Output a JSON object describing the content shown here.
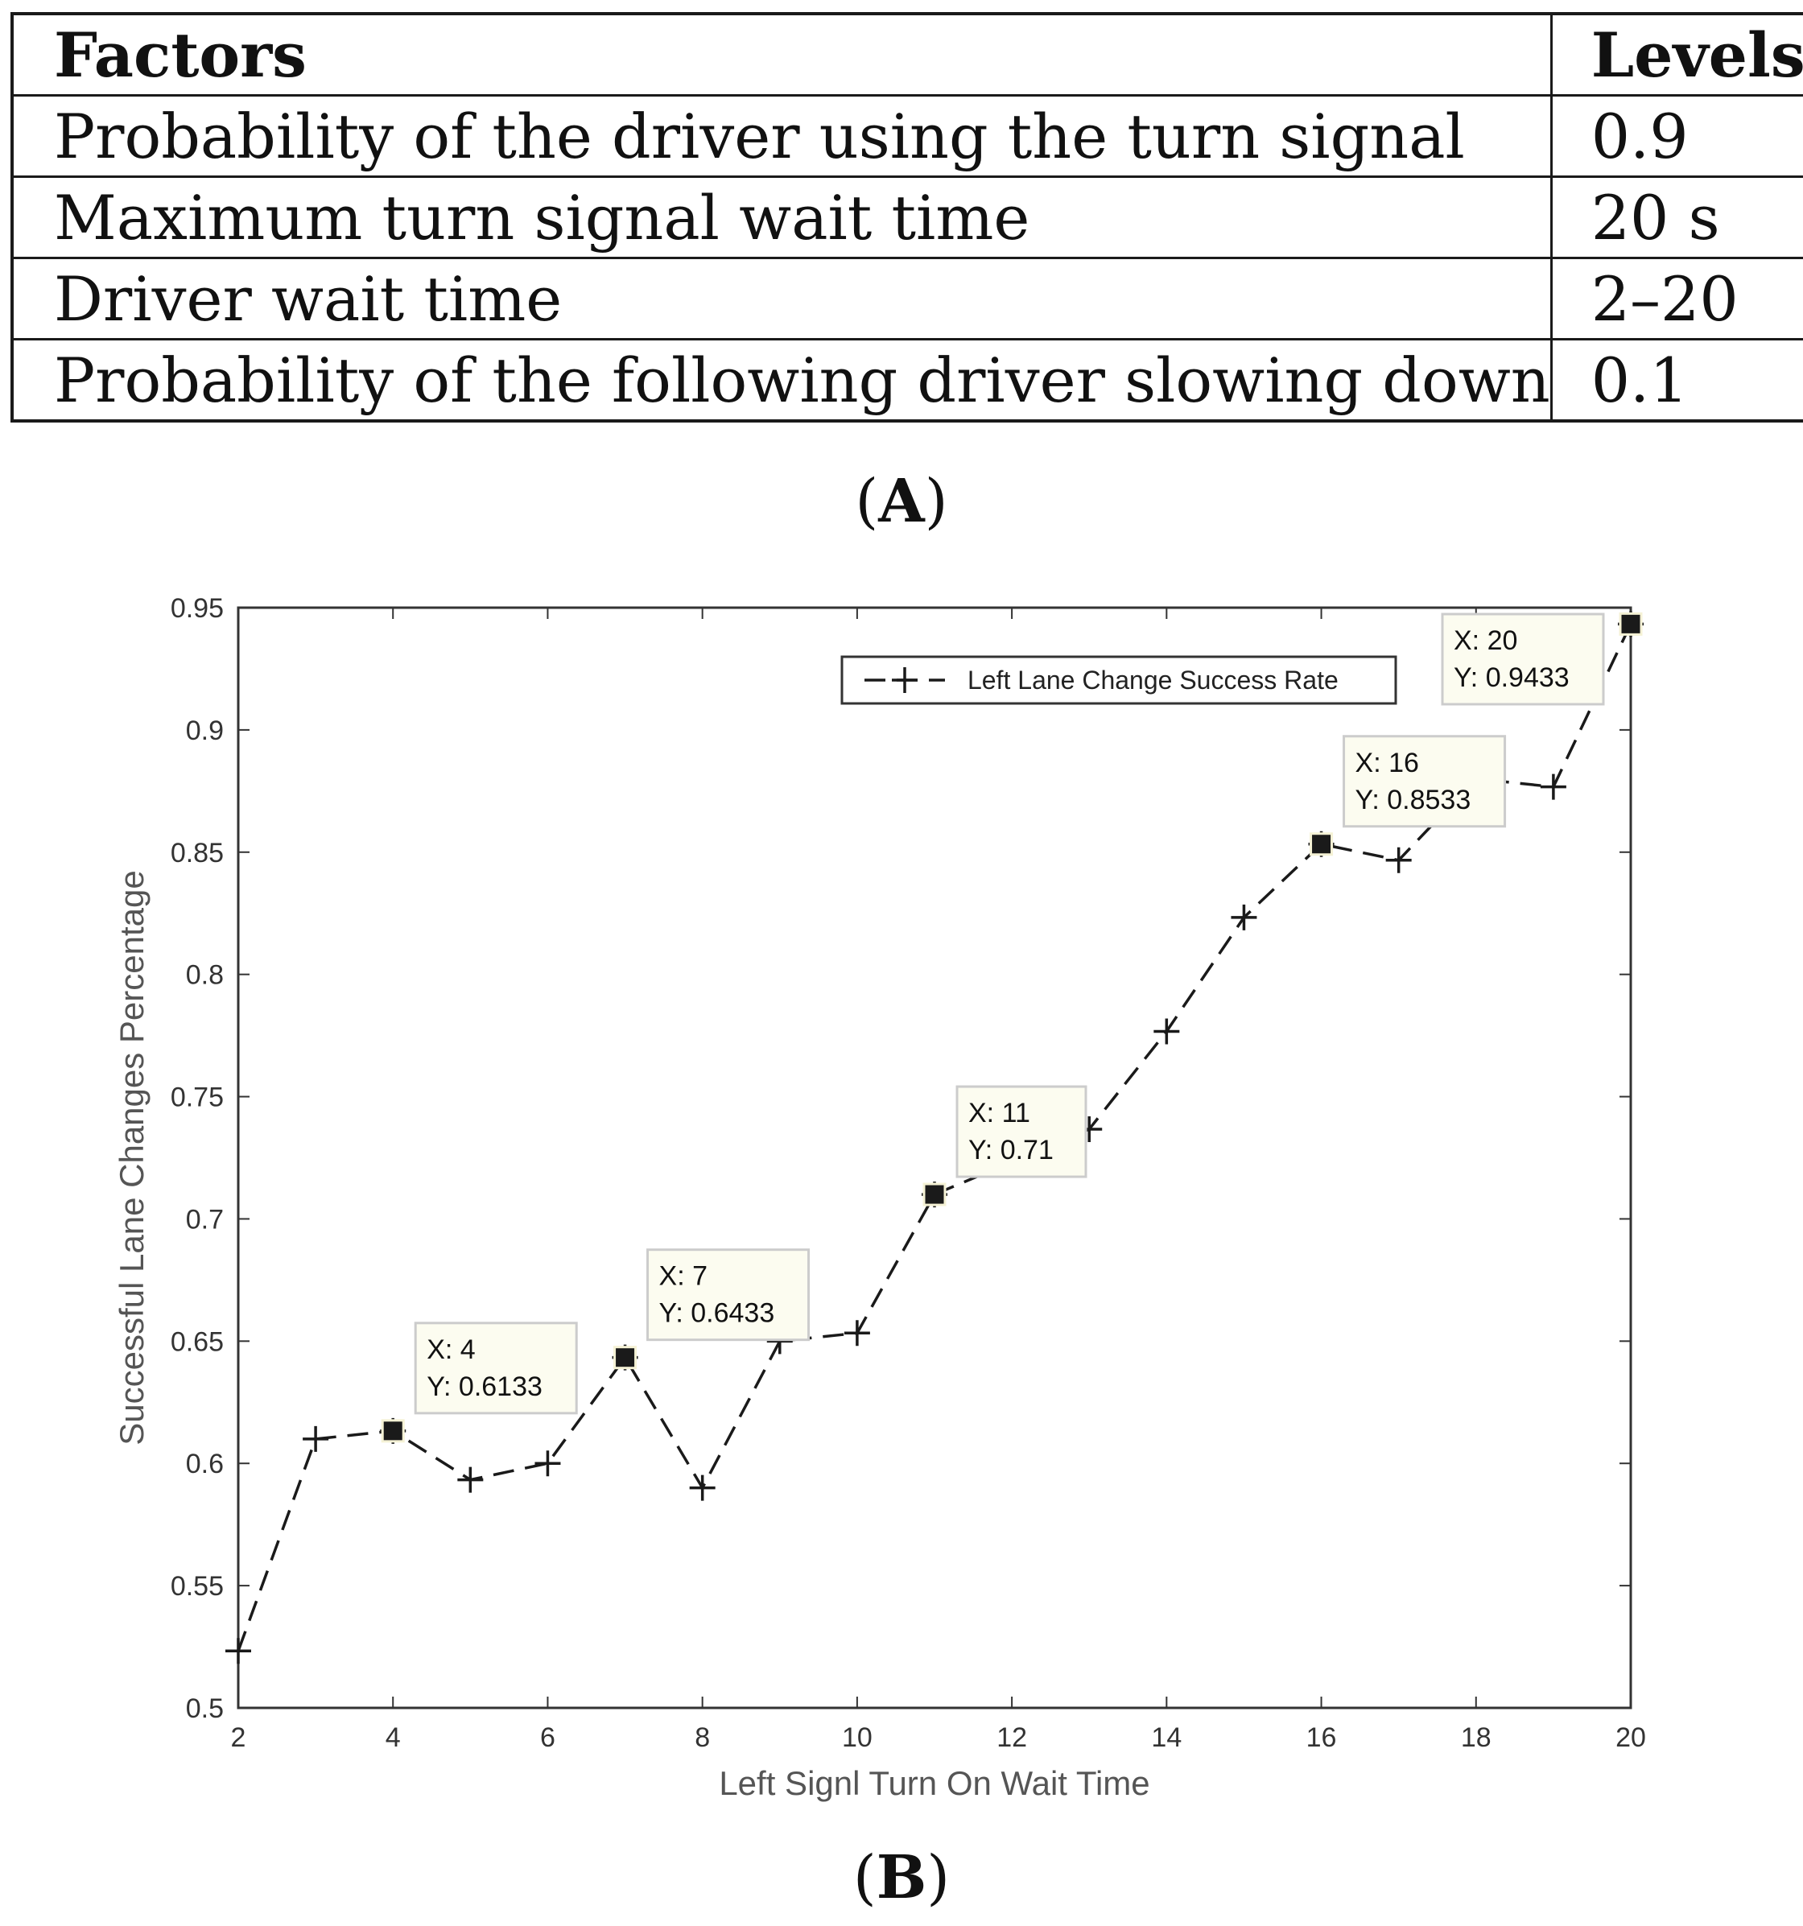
{
  "table": {
    "headers": [
      "Factors",
      "Levels"
    ],
    "rows": [
      [
        "Probability of the driver using the turn signal",
        "0.9"
      ],
      [
        "Maximum turn signal wait time",
        "20 s"
      ],
      [
        "Driver wait time",
        "2–20"
      ],
      [
        "Probability of the following driver slowing down",
        "0.1"
      ]
    ]
  },
  "panel_labels": {
    "a_open": "(",
    "a_letter": "A",
    "a_close": ")",
    "b_open": "(",
    "b_letter": "B",
    "b_close": ")"
  },
  "chart_data": {
    "type": "line",
    "title": "",
    "xlabel": "Left Signl Turn On Wait Time",
    "ylabel": "Successful Lane Changes Percentage",
    "xlim": [
      2,
      20
    ],
    "ylim": [
      0.5,
      0.95
    ],
    "xticks": [
      2,
      4,
      6,
      8,
      10,
      12,
      14,
      16,
      18,
      20
    ],
    "yticks": [
      0.5,
      0.55,
      0.6,
      0.65,
      0.7,
      0.75,
      0.8,
      0.85,
      0.9,
      0.95
    ],
    "legend": {
      "position": "top-right",
      "entries": [
        "Left Lane Change Success Rate"
      ]
    },
    "series": [
      {
        "name": "Left Lane Change Success Rate",
        "x": [
          2,
          3,
          4,
          5,
          6,
          7,
          8,
          9,
          10,
          11,
          12,
          13,
          14,
          15,
          16,
          17,
          18,
          19,
          20
        ],
        "y": [
          0.5233,
          0.61,
          0.6133,
          0.5933,
          0.6,
          0.6433,
          0.59,
          0.65,
          0.6533,
          0.71,
          0.7233,
          0.7367,
          0.7767,
          0.8233,
          0.8533,
          0.8467,
          0.88,
          0.8767,
          0.9433
        ]
      }
    ],
    "datatips": [
      {
        "x": 4,
        "y": 0.6133,
        "line1": "X: 4",
        "line2": "Y: 0.6133"
      },
      {
        "x": 7,
        "y": 0.6433,
        "line1": "X: 7",
        "line2": "Y: 0.6433"
      },
      {
        "x": 11,
        "y": 0.71,
        "line1": "X: 11",
        "line2": "Y: 0.71"
      },
      {
        "x": 16,
        "y": 0.8533,
        "line1": "X: 16",
        "line2": "Y: 0.8533"
      },
      {
        "x": 20,
        "y": 0.9433,
        "line1": "X: 20",
        "line2": "Y: 0.9433"
      }
    ],
    "colors": {
      "line": "#1a1a1a",
      "axis": "#333333",
      "tip_bg": "#fcfcf0",
      "tip_border": "#cccccc"
    }
  }
}
